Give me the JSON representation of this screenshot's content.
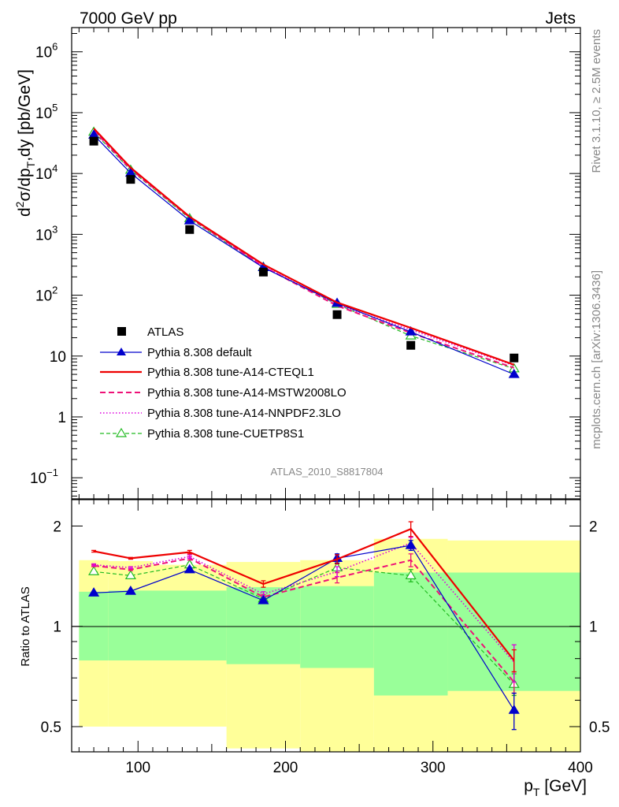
{
  "header": {
    "left": "7000 GeV pp",
    "right": "Jets"
  },
  "side": {
    "rivet": "Rivet 3.1.10, ≥ 2.5M events",
    "mcplots": "mcplots.cern.ch [arXiv:1306.3436]"
  },
  "analysis_id": "ATLAS_2010_S8817804",
  "colors": {
    "atlas": "#000000",
    "default": "#0000cc",
    "cteql1": "#ee0000",
    "mstw": "#ee1177",
    "nnpdf": "#dd00dd",
    "cuetp8s1": "#22bb22",
    "band_outer": "#ffff99",
    "band_inner": "#99ff99"
  },
  "chart_data": [
    {
      "name": "main",
      "type": "line",
      "scale": "log",
      "title": "",
      "xlabel": "",
      "ylabel": {
        "prefix": "d",
        "sup": "2",
        "mid": "σ/dp",
        "sub": "T",
        "suffix": ",dy [pb/GeV]"
      },
      "xlim": [
        55,
        400
      ],
      "ylim": [
        0.045,
        2500000
      ],
      "y_major_ticks": [
        {
          "v": 0.1,
          "base": "10",
          "exp": "−1"
        },
        {
          "v": 1,
          "base": "1",
          "exp": ""
        },
        {
          "v": 10,
          "base": "10",
          "exp": ""
        },
        {
          "v": 100,
          "base": "10",
          "exp": "2"
        },
        {
          "v": 1000,
          "base": "10",
          "exp": "3"
        },
        {
          "v": 10000,
          "base": "10",
          "exp": "4"
        },
        {
          "v": 100000,
          "base": "10",
          "exp": "5"
        },
        {
          "v": 1000000,
          "base": "10",
          "exp": "6"
        }
      ],
      "x": [
        70,
        95,
        135,
        185,
        235,
        285,
        355
      ],
      "data": {
        "name": "ATLAS",
        "values": [
          34000,
          8000,
          1200,
          240,
          48,
          15,
          9.3
        ]
      },
      "series": [
        {
          "key": "default",
          "name": "Pythia 8.308 default",
          "style": "solid",
          "marker": "triangle-filled",
          "values": [
            43000,
            10200,
            1680,
            285,
            74,
            25,
            5.0
          ]
        },
        {
          "key": "cteql1",
          "name": "Pythia 8.308 tune-A14-CTEQL1",
          "style": "solid-thick",
          "marker": "",
          "values": [
            55000,
            12500,
            1950,
            320,
            76,
            29,
            7.2
          ]
        },
        {
          "key": "mstw",
          "name": "Pythia 8.308 tune-A14-MSTW2008LO",
          "style": "dashed",
          "marker": "",
          "values": [
            51000,
            11800,
            1900,
            295,
            67,
            24,
            6.4
          ]
        },
        {
          "key": "nnpdf",
          "name": "Pythia 8.308 tune-A14-NNPDF2.3LO",
          "style": "dotted",
          "marker": "",
          "values": [
            52000,
            12000,
            1920,
            300,
            70,
            27,
            7.0
          ]
        },
        {
          "key": "cuetp8s1",
          "name": "Pythia 8.308 tune-CUETP8S1",
          "style": "dashed-thin",
          "marker": "triangle-open",
          "values": [
            48000,
            11400,
            1820,
            290,
            71,
            21.5,
            6.2
          ]
        }
      ],
      "legend_position": "lower-left"
    },
    {
      "name": "ratio",
      "type": "line",
      "scale": "log",
      "xlabel": {
        "main": "p",
        "sub": "T",
        "suffix": " [GeV]"
      },
      "ylabel": "Ratio to ATLAS",
      "xlim": [
        55,
        400
      ],
      "ylim": [
        0.42,
        2.4
      ],
      "x_ticks": [
        100,
        200,
        300,
        400
      ],
      "y_ticks": [
        0.5,
        1,
        2
      ],
      "x": [
        70,
        95,
        135,
        185,
        235,
        285,
        355
      ],
      "band_edges": [
        60,
        80,
        110,
        160,
        210,
        260,
        310,
        400
      ],
      "band_outer": [
        [
          0.5,
          1.58
        ],
        [
          0.5,
          1.57
        ],
        [
          0.5,
          1.53
        ],
        [
          0.43,
          1.56
        ],
        [
          0.4,
          1.58
        ],
        [
          0.38,
          1.83
        ],
        [
          0.38,
          1.81
        ]
      ],
      "band_inner": [
        [
          0.79,
          1.27
        ],
        [
          0.79,
          1.28
        ],
        [
          0.79,
          1.28
        ],
        [
          0.77,
          1.31
        ],
        [
          0.75,
          1.32
        ],
        [
          0.62,
          1.45
        ],
        [
          0.64,
          1.45
        ]
      ],
      "series": [
        {
          "key": "default",
          "values": [
            1.26,
            1.275,
            1.48,
            1.195,
            1.6,
            1.75,
            0.56
          ],
          "err": [
            0.01,
            0.01,
            0.02,
            0.02,
            0.05,
            0.06,
            0.07
          ]
        },
        {
          "key": "cteql1",
          "values": [
            1.68,
            1.6,
            1.67,
            1.34,
            1.59,
            1.96,
            0.79
          ],
          "err": [
            0.01,
            0.01,
            0.02,
            0.03,
            0.05,
            0.1,
            0.06
          ]
        },
        {
          "key": "mstw",
          "values": [
            1.52,
            1.48,
            1.6,
            1.225,
            1.4,
            1.58,
            0.68
          ],
          "err": [
            0.01,
            0.01,
            0.02,
            0.02,
            0.05,
            0.07,
            0.05
          ]
        },
        {
          "key": "nnpdf",
          "values": [
            1.53,
            1.5,
            1.62,
            1.25,
            1.46,
            1.78,
            0.78
          ],
          "err": [
            0.01,
            0.01,
            0.02,
            0.02,
            0.05,
            0.07,
            0.1
          ]
        },
        {
          "key": "cuetp8s1",
          "values": [
            1.46,
            1.42,
            1.53,
            1.21,
            1.5,
            1.42,
            0.67
          ],
          "err": [
            0.01,
            0.01,
            0.02,
            0.02,
            0.05,
            0.06,
            0.05
          ]
        }
      ]
    }
  ]
}
